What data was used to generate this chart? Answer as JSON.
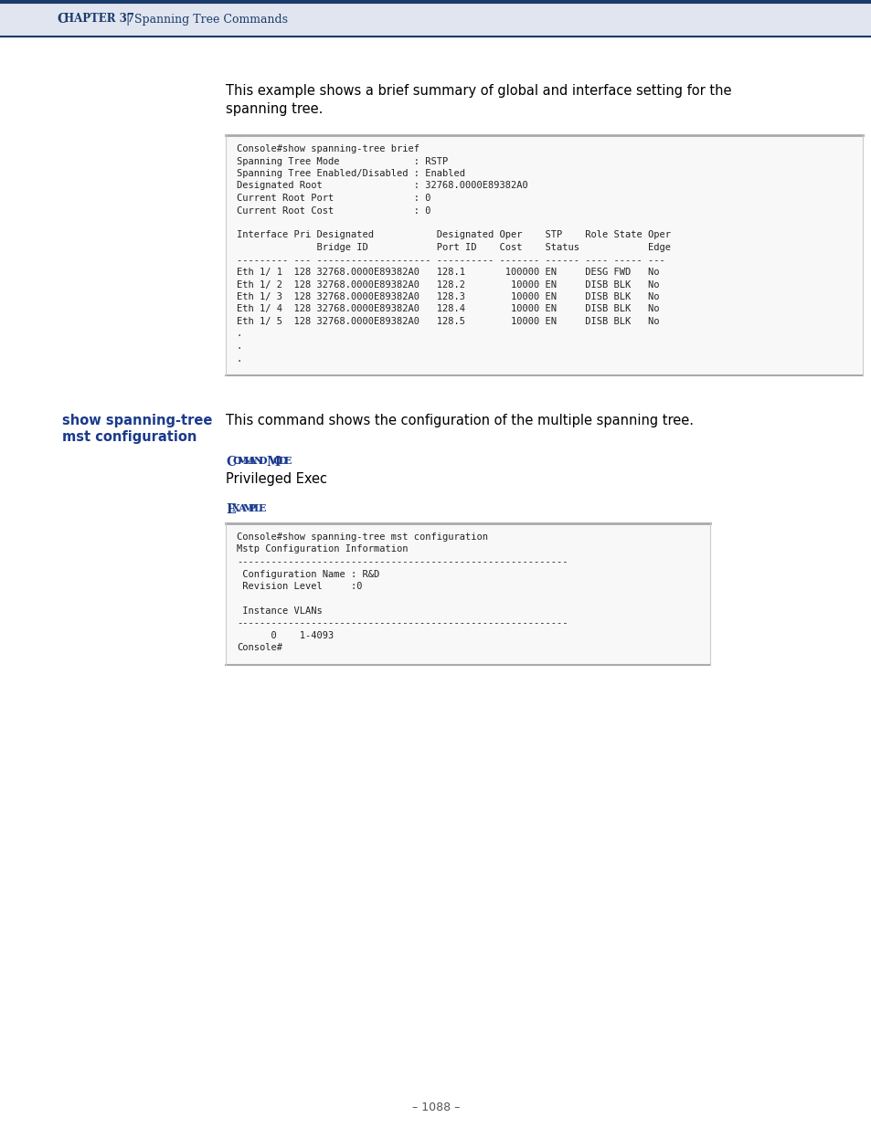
{
  "page_bg": "#ffffff",
  "header_bg": "#e0e5ef",
  "header_top_line_color": "#1a3a6b",
  "header_bottom_line_color": "#1a3a6b",
  "header_font_color": "#1a3a6b",
  "blue_color": "#1a3a8c",
  "body_text_color": "#000000",
  "code_bg": "#f8f8f8",
  "intro_line1": "This example shows a brief summary of global and interface setting for the",
  "intro_line2": "spanning tree.",
  "code_block1": [
    "Console#show spanning-tree brief",
    "Spanning Tree Mode             : RSTP",
    "Spanning Tree Enabled/Disabled : Enabled",
    "Designated Root                : 32768.0000E89382A0",
    "Current Root Port              : 0",
    "Current Root Cost              : 0",
    "",
    "Interface Pri Designated           Designated Oper    STP    Role State Oper",
    "              Bridge ID            Port ID    Cost    Status            Edge",
    "--------- --- -------------------- ---------- ------- ------ ---- ----- ---",
    "Eth 1/ 1  128 32768.0000E89382A0   128.1       100000 EN     DESG FWD   No",
    "Eth 1/ 2  128 32768.0000E89382A0   128.2        10000 EN     DISB BLK   No",
    "Eth 1/ 3  128 32768.0000E89382A0   128.3        10000 EN     DISB BLK   No",
    "Eth 1/ 4  128 32768.0000E89382A0   128.4        10000 EN     DISB BLK   No",
    "Eth 1/ 5  128 32768.0000E89382A0   128.5        10000 EN     DISB BLK   No",
    ".",
    ".",
    "."
  ],
  "cmd_name_line1": "show spanning-tree",
  "cmd_name_line2": "mst configuration",
  "cmd_desc": "This command shows the configuration of the multiple spanning tree.",
  "cmd_mode_value": "Privileged Exec",
  "code_block2": [
    "Console#show spanning-tree mst configuration",
    "Mstp Configuration Information",
    "----------------------------------------------------------",
    " Configuration Name : R&D",
    " Revision Level     :0",
    "",
    " Instance VLANs",
    "----------------------------------------------------------",
    "      0    1-4093",
    "Console#"
  ],
  "page_number": "– 1088 –"
}
